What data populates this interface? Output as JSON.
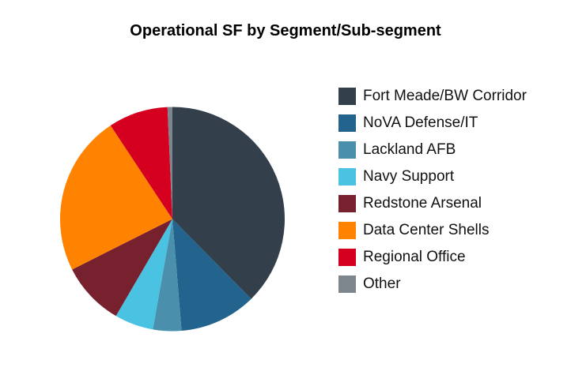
{
  "chart_data": {
    "type": "pie",
    "title": "Operational SF by Segment/Sub-segment",
    "legend_position": "right",
    "unit": "percent (estimated)",
    "slices": [
      {
        "label": "Fort Meade/BW Corridor",
        "value": 37.7,
        "color": "#333f4a"
      },
      {
        "label": "NoVA Defense/IT",
        "value": 11.1,
        "color": "#23648f"
      },
      {
        "label": "Lackland AFB",
        "value": 4.1,
        "color": "#4a8fab"
      },
      {
        "label": "Navy Support",
        "value": 5.6,
        "color": "#4ac2e2"
      },
      {
        "label": "Redstone Arsenal",
        "value": 9.2,
        "color": "#77202e"
      },
      {
        "label": "Data Center Shells",
        "value": 23.2,
        "color": "#ff8300"
      },
      {
        "label": "Regional Office",
        "value": 8.6,
        "color": "#d50020"
      },
      {
        "label": "Other",
        "value": 0.7,
        "color": "#7d868c"
      }
    ]
  }
}
